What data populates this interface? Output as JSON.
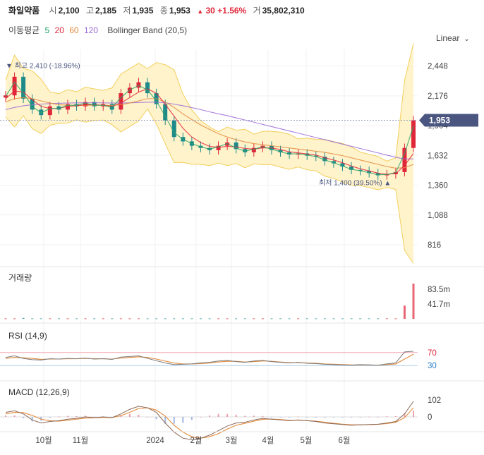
{
  "header": {
    "name": "화일약품",
    "open_label": "시",
    "open": "2,100",
    "high_label": "고",
    "high": "2,185",
    "low_label": "저",
    "low": "1,935",
    "close_label": "종",
    "close": "1,953",
    "change_arrow": "▲",
    "change": "30",
    "change_pct": "+1.56%",
    "volume_label": "거",
    "volume": "35,802,310"
  },
  "indicators": {
    "ma_label": "이동평균",
    "ma5": "5",
    "ma20": "20",
    "ma60": "60",
    "ma120": "120",
    "bollinger": "Bollinger Band (20,5)"
  },
  "scale_button": {
    "label": "Linear",
    "icon": "chevron-down-icon"
  },
  "colors": {
    "up": "#e0273a",
    "down": "#1e8a8a",
    "ma5": "#2aa36b",
    "ma20": "#e0273a",
    "ma60": "#e28a3c",
    "ma120": "#9b6ad6",
    "band": "#fff3cc",
    "band_line": "#f2cf5b",
    "price_tag": "#4a5680"
  },
  "chart_data": [
    {
      "type": "line",
      "panel": "price",
      "series_type": "candlestick",
      "x": [
        "2023-09-04",
        "2023-09-11",
        "2023-09-18",
        "2023-09-25",
        "2023-10-02",
        "2023-10-09",
        "2023-10-16",
        "2023-10-23",
        "2023-10-30",
        "2023-11-06",
        "2023-11-13",
        "2023-11-20",
        "2023-11-27",
        "2023-12-04",
        "2023-12-11",
        "2023-12-18",
        "2023-12-25",
        "2024-01-01",
        "2024-01-08",
        "2024-01-15",
        "2024-01-22",
        "2024-01-29",
        "2024-02-05",
        "2024-02-12",
        "2024-02-19",
        "2024-02-26",
        "2024-03-04",
        "2024-03-11",
        "2024-03-18",
        "2024-03-25",
        "2024-04-01",
        "2024-04-08",
        "2024-04-15",
        "2024-04-22",
        "2024-04-29",
        "2024-05-06",
        "2024-05-13",
        "2024-05-20",
        "2024-05-27",
        "2024-06-03",
        "2024-06-10",
        "2024-06-17",
        "2024-06-24",
        "2024-07-01",
        "2024-07-08",
        "2024-07-15",
        "2024-07-22"
      ],
      "series": [
        {
          "name": "close",
          "values": [
            2180,
            2350,
            2150,
            2050,
            2000,
            2080,
            2050,
            2100,
            2080,
            2120,
            2080,
            2100,
            2050,
            2200,
            2250,
            2300,
            2200,
            2100,
            1950,
            1800,
            1760,
            1720,
            1700,
            1680,
            1720,
            1750,
            1690,
            1660,
            1700,
            1720,
            1680,
            1660,
            1640,
            1650,
            1630,
            1620,
            1580,
            1560,
            1530,
            1500,
            1490,
            1470,
            1450,
            1460,
            1480,
            1700,
            1953
          ]
        },
        {
          "name": "5",
          "values": [
            2170,
            2300,
            2200,
            2080,
            2020,
            2060,
            2060,
            2090,
            2090,
            2110,
            2090,
            2090,
            2070,
            2160,
            2230,
            2270,
            2230,
            2130,
            1990,
            1840,
            1780,
            1740,
            1710,
            1690,
            1710,
            1740,
            1700,
            1670,
            1690,
            1710,
            1690,
            1665,
            1645,
            1648,
            1635,
            1622,
            1590,
            1565,
            1535,
            1505,
            1492,
            1475,
            1455,
            1458,
            1475,
            1650,
            1900
          ]
        },
        {
          "name": "20",
          "values": [
            2150,
            2220,
            2210,
            2140,
            2080,
            2060,
            2060,
            2080,
            2085,
            2095,
            2095,
            2090,
            2080,
            2110,
            2160,
            2210,
            2240,
            2200,
            2100,
            1990,
            1880,
            1800,
            1750,
            1715,
            1705,
            1715,
            1710,
            1695,
            1690,
            1700,
            1700,
            1685,
            1665,
            1655,
            1645,
            1635,
            1610,
            1590,
            1565,
            1535,
            1510,
            1490,
            1470,
            1460,
            1465,
            1540,
            1650
          ]
        },
        {
          "name": "60",
          "values": [
            2120,
            2150,
            2160,
            2150,
            2130,
            2110,
            2095,
            2090,
            2090,
            2090,
            2090,
            2090,
            2088,
            2095,
            2110,
            2130,
            2150,
            2150,
            2120,
            2070,
            2010,
            1960,
            1910,
            1870,
            1830,
            1800,
            1775,
            1755,
            1740,
            1730,
            1720,
            1710,
            1700,
            1690,
            1680,
            1670,
            1660,
            1645,
            1630,
            1610,
            1590,
            1570,
            1550,
            1530,
            1515,
            1520,
            1550
          ]
        },
        {
          "name": "120",
          "values": [
            2050,
            2070,
            2085,
            2095,
            2100,
            2105,
            2108,
            2110,
            2112,
            2113,
            2113,
            2112,
            2110,
            2110,
            2112,
            2115,
            2118,
            2118,
            2112,
            2100,
            2085,
            2068,
            2050,
            2030,
            2012,
            1995,
            1975,
            1955,
            1935,
            1915,
            1895,
            1875,
            1855,
            1835,
            1815,
            1795,
            1775,
            1755,
            1735,
            1715,
            1695,
            1675,
            1655,
            1635,
            1615,
            1600,
            1600
          ]
        }
      ],
      "yticks": [
        2448,
        2176,
        1904,
        1632,
        1360,
        1088,
        816
      ],
      "ylim": [
        700,
        2600
      ],
      "annotations": [
        {
          "label": "▼ 최고 2,410 (-18.96%)",
          "value": 2410
        },
        {
          "label": "최저 1,400 (39.50%) ▲",
          "value": 1400
        }
      ],
      "current_price": "1,953"
    },
    {
      "type": "bar",
      "panel": "volume",
      "title": "거래량",
      "yticks": [
        "83.5m",
        "41.7m"
      ],
      "values": [
        1,
        1,
        2,
        1,
        1,
        1,
        1,
        1,
        1,
        1,
        1,
        1,
        1,
        1,
        1,
        1,
        1,
        1,
        1,
        1,
        1,
        1,
        1,
        1,
        1,
        1,
        1,
        1,
        1,
        1,
        1,
        1,
        1,
        1,
        1,
        1,
        1,
        1,
        1,
        1,
        1,
        1,
        1,
        1,
        1,
        30,
        80
      ]
    },
    {
      "type": "line",
      "panel": "rsi",
      "title": "RSI (14,9)",
      "levels": [
        70,
        30
      ],
      "series": [
        {
          "name": "rsi",
          "values": [
            55,
            60,
            52,
            48,
            47,
            51,
            50,
            52,
            51,
            53,
            50,
            51,
            49,
            56,
            58,
            60,
            52,
            45,
            38,
            33,
            34,
            35,
            38,
            40,
            44,
            46,
            42,
            40,
            44,
            46,
            42,
            40,
            38,
            40,
            37,
            36,
            34,
            33,
            32,
            31,
            33,
            32,
            31,
            35,
            38,
            72,
            74
          ]
        },
        {
          "name": "signal",
          "values": [
            52,
            55,
            54,
            52,
            49,
            50,
            50,
            51,
            51,
            52,
            51,
            51,
            50,
            53,
            55,
            57,
            55,
            50,
            44,
            38,
            35,
            35,
            36,
            38,
            41,
            43,
            43,
            41,
            42,
            44,
            43,
            41,
            39,
            39,
            38,
            37,
            35,
            34,
            33,
            32,
            32,
            32,
            31,
            33,
            35,
            50,
            65
          ]
        }
      ]
    },
    {
      "type": "line",
      "panel": "macd",
      "title": "MACD (12,26,9)",
      "yticks": [
        102,
        0
      ],
      "series": [
        {
          "name": "macd",
          "values": [
            30,
            40,
            20,
            -20,
            -40,
            -30,
            -25,
            -15,
            -10,
            0,
            -5,
            0,
            -5,
            20,
            50,
            70,
            60,
            30,
            -40,
            -100,
            -140,
            -150,
            -140,
            -120,
            -90,
            -60,
            -40,
            -35,
            -20,
            -10,
            -15,
            -20,
            -25,
            -20,
            -25,
            -30,
            -40,
            -45,
            -50,
            -55,
            -52,
            -50,
            -48,
            -40,
            -30,
            20,
            102
          ]
        },
        {
          "name": "signal",
          "values": [
            20,
            30,
            28,
            10,
            -15,
            -25,
            -28,
            -22,
            -15,
            -8,
            -6,
            -3,
            -4,
            8,
            30,
            55,
            60,
            45,
            5,
            -55,
            -100,
            -130,
            -140,
            -130,
            -110,
            -80,
            -55,
            -42,
            -28,
            -16,
            -14,
            -17,
            -22,
            -22,
            -24,
            -28,
            -35,
            -42,
            -48,
            -52,
            -52,
            -51,
            -49,
            -44,
            -35,
            -5,
            60
          ]
        }
      ]
    }
  ],
  "xaxis": {
    "labels": [
      "10월",
      "11월",
      "2024",
      "2월",
      "3월",
      "4월",
      "5월",
      "6월"
    ]
  }
}
